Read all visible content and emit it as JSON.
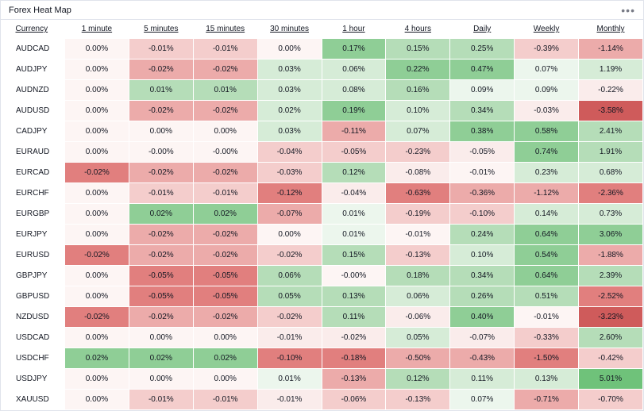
{
  "title": "Forex Heat Map",
  "menu_icon": "•••",
  "columns": [
    "Currency",
    "1 minute",
    "5 minutes",
    "15 minutes",
    "30 minutes",
    "1 hour",
    "4 hours",
    "Daily",
    "Weekly",
    "Monthly"
  ],
  "color_scale": {
    "neg5": "#cf5b5b",
    "neg4": "#e17f7e",
    "neg3": "#ecabaa",
    "neg2": "#f4cdcc",
    "neg1": "#faeceb",
    "neutral": "#fdf5f4",
    "pos1": "#ecf6ed",
    "pos2": "#d6ecd7",
    "pos3": "#b5ddb8",
    "pos4": "#8fce96",
    "pos5": "#6fc27a"
  },
  "text_color": "#131722",
  "border_color": "#e0e3eb",
  "rows": [
    {
      "label": "AUDCAD",
      "cells": [
        {
          "v": "0.00%",
          "c": "neutral"
        },
        {
          "v": "-0.01%",
          "c": "neg2"
        },
        {
          "v": "-0.01%",
          "c": "neg2"
        },
        {
          "v": "0.00%",
          "c": "neutral"
        },
        {
          "v": "0.17%",
          "c": "pos4"
        },
        {
          "v": "0.15%",
          "c": "pos3"
        },
        {
          "v": "0.25%",
          "c": "pos3"
        },
        {
          "v": "-0.39%",
          "c": "neg2"
        },
        {
          "v": "-1.14%",
          "c": "neg3"
        }
      ]
    },
    {
      "label": "AUDJPY",
      "cells": [
        {
          "v": "0.00%",
          "c": "neutral"
        },
        {
          "v": "-0.02%",
          "c": "neg3"
        },
        {
          "v": "-0.02%",
          "c": "neg3"
        },
        {
          "v": "0.03%",
          "c": "pos2"
        },
        {
          "v": "0.06%",
          "c": "pos2"
        },
        {
          "v": "0.22%",
          "c": "pos4"
        },
        {
          "v": "0.47%",
          "c": "pos4"
        },
        {
          "v": "0.07%",
          "c": "pos1"
        },
        {
          "v": "1.19%",
          "c": "pos2"
        }
      ]
    },
    {
      "label": "AUDNZD",
      "cells": [
        {
          "v": "0.00%",
          "c": "neutral"
        },
        {
          "v": "0.01%",
          "c": "pos3"
        },
        {
          "v": "0.01%",
          "c": "pos3"
        },
        {
          "v": "0.03%",
          "c": "pos2"
        },
        {
          "v": "0.08%",
          "c": "pos2"
        },
        {
          "v": "0.16%",
          "c": "pos3"
        },
        {
          "v": "0.09%",
          "c": "pos1"
        },
        {
          "v": "0.09%",
          "c": "pos1"
        },
        {
          "v": "-0.22%",
          "c": "neg1"
        }
      ]
    },
    {
      "label": "AUDUSD",
      "cells": [
        {
          "v": "0.00%",
          "c": "neutral"
        },
        {
          "v": "-0.02%",
          "c": "neg3"
        },
        {
          "v": "-0.02%",
          "c": "neg3"
        },
        {
          "v": "0.02%",
          "c": "pos2"
        },
        {
          "v": "0.19%",
          "c": "pos4"
        },
        {
          "v": "0.10%",
          "c": "pos2"
        },
        {
          "v": "0.34%",
          "c": "pos3"
        },
        {
          "v": "-0.03%",
          "c": "neg1"
        },
        {
          "v": "-3.58%",
          "c": "neg5"
        }
      ]
    },
    {
      "label": "CADJPY",
      "cells": [
        {
          "v": "0.00%",
          "c": "neutral"
        },
        {
          "v": "0.00%",
          "c": "neutral"
        },
        {
          "v": "0.00%",
          "c": "neutral"
        },
        {
          "v": "0.03%",
          "c": "pos2"
        },
        {
          "v": "-0.11%",
          "c": "neg3"
        },
        {
          "v": "0.07%",
          "c": "pos2"
        },
        {
          "v": "0.38%",
          "c": "pos4"
        },
        {
          "v": "0.58%",
          "c": "pos4"
        },
        {
          "v": "2.41%",
          "c": "pos3"
        }
      ]
    },
    {
      "label": "EURAUD",
      "cells": [
        {
          "v": "0.00%",
          "c": "neutral"
        },
        {
          "v": "-0.00%",
          "c": "neutral"
        },
        {
          "v": "-0.00%",
          "c": "neutral"
        },
        {
          "v": "-0.04%",
          "c": "neg2"
        },
        {
          "v": "-0.05%",
          "c": "neg2"
        },
        {
          "v": "-0.23%",
          "c": "neg2"
        },
        {
          "v": "-0.05%",
          "c": "neg1"
        },
        {
          "v": "0.74%",
          "c": "pos4"
        },
        {
          "v": "1.91%",
          "c": "pos3"
        }
      ]
    },
    {
      "label": "EURCAD",
      "cells": [
        {
          "v": "-0.02%",
          "c": "neg4"
        },
        {
          "v": "-0.02%",
          "c": "neg3"
        },
        {
          "v": "-0.02%",
          "c": "neg3"
        },
        {
          "v": "-0.03%",
          "c": "neg2"
        },
        {
          "v": "0.12%",
          "c": "pos3"
        },
        {
          "v": "-0.08%",
          "c": "neg1"
        },
        {
          "v": "-0.01%",
          "c": "neutral"
        },
        {
          "v": "0.23%",
          "c": "pos2"
        },
        {
          "v": "0.68%",
          "c": "pos2"
        }
      ]
    },
    {
      "label": "EURCHF",
      "cells": [
        {
          "v": "0.00%",
          "c": "neutral"
        },
        {
          "v": "-0.01%",
          "c": "neg2"
        },
        {
          "v": "-0.01%",
          "c": "neg2"
        },
        {
          "v": "-0.12%",
          "c": "neg4"
        },
        {
          "v": "-0.04%",
          "c": "neg1"
        },
        {
          "v": "-0.63%",
          "c": "neg4"
        },
        {
          "v": "-0.36%",
          "c": "neg3"
        },
        {
          "v": "-1.12%",
          "c": "neg3"
        },
        {
          "v": "-2.36%",
          "c": "neg4"
        }
      ]
    },
    {
      "label": "EURGBP",
      "cells": [
        {
          "v": "0.00%",
          "c": "neutral"
        },
        {
          "v": "0.02%",
          "c": "pos4"
        },
        {
          "v": "0.02%",
          "c": "pos4"
        },
        {
          "v": "-0.07%",
          "c": "neg3"
        },
        {
          "v": "0.01%",
          "c": "pos1"
        },
        {
          "v": "-0.19%",
          "c": "neg2"
        },
        {
          "v": "-0.10%",
          "c": "neg2"
        },
        {
          "v": "0.14%",
          "c": "pos2"
        },
        {
          "v": "0.73%",
          "c": "pos2"
        }
      ]
    },
    {
      "label": "EURJPY",
      "cells": [
        {
          "v": "0.00%",
          "c": "neutral"
        },
        {
          "v": "-0.02%",
          "c": "neg3"
        },
        {
          "v": "-0.02%",
          "c": "neg3"
        },
        {
          "v": "0.00%",
          "c": "neutral"
        },
        {
          "v": "0.01%",
          "c": "pos1"
        },
        {
          "v": "-0.01%",
          "c": "neutral"
        },
        {
          "v": "0.24%",
          "c": "pos3"
        },
        {
          "v": "0.64%",
          "c": "pos4"
        },
        {
          "v": "3.06%",
          "c": "pos4"
        }
      ]
    },
    {
      "label": "EURUSD",
      "cells": [
        {
          "v": "-0.02%",
          "c": "neg4"
        },
        {
          "v": "-0.02%",
          "c": "neg3"
        },
        {
          "v": "-0.02%",
          "c": "neg3"
        },
        {
          "v": "-0.02%",
          "c": "neg2"
        },
        {
          "v": "0.15%",
          "c": "pos3"
        },
        {
          "v": "-0.13%",
          "c": "neg2"
        },
        {
          "v": "0.10%",
          "c": "pos2"
        },
        {
          "v": "0.54%",
          "c": "pos4"
        },
        {
          "v": "-1.88%",
          "c": "neg3"
        }
      ]
    },
    {
      "label": "GBPJPY",
      "cells": [
        {
          "v": "0.00%",
          "c": "neutral"
        },
        {
          "v": "-0.05%",
          "c": "neg4"
        },
        {
          "v": "-0.05%",
          "c": "neg4"
        },
        {
          "v": "0.06%",
          "c": "pos3"
        },
        {
          "v": "-0.00%",
          "c": "neutral"
        },
        {
          "v": "0.18%",
          "c": "pos3"
        },
        {
          "v": "0.34%",
          "c": "pos3"
        },
        {
          "v": "0.64%",
          "c": "pos4"
        },
        {
          "v": "2.39%",
          "c": "pos3"
        }
      ]
    },
    {
      "label": "GBPUSD",
      "cells": [
        {
          "v": "0.00%",
          "c": "neutral"
        },
        {
          "v": "-0.05%",
          "c": "neg4"
        },
        {
          "v": "-0.05%",
          "c": "neg4"
        },
        {
          "v": "0.05%",
          "c": "pos3"
        },
        {
          "v": "0.13%",
          "c": "pos3"
        },
        {
          "v": "0.06%",
          "c": "pos2"
        },
        {
          "v": "0.26%",
          "c": "pos3"
        },
        {
          "v": "0.51%",
          "c": "pos3"
        },
        {
          "v": "-2.52%",
          "c": "neg4"
        }
      ]
    },
    {
      "label": "NZDUSD",
      "cells": [
        {
          "v": "-0.02%",
          "c": "neg4"
        },
        {
          "v": "-0.02%",
          "c": "neg3"
        },
        {
          "v": "-0.02%",
          "c": "neg3"
        },
        {
          "v": "-0.02%",
          "c": "neg2"
        },
        {
          "v": "0.11%",
          "c": "pos3"
        },
        {
          "v": "-0.06%",
          "c": "neg1"
        },
        {
          "v": "0.40%",
          "c": "pos4"
        },
        {
          "v": "-0.01%",
          "c": "neutral"
        },
        {
          "v": "-3.23%",
          "c": "neg5"
        }
      ]
    },
    {
      "label": "USDCAD",
      "cells": [
        {
          "v": "0.00%",
          "c": "neutral"
        },
        {
          "v": "0.00%",
          "c": "neutral"
        },
        {
          "v": "0.00%",
          "c": "neutral"
        },
        {
          "v": "-0.01%",
          "c": "neg1"
        },
        {
          "v": "-0.02%",
          "c": "neg1"
        },
        {
          "v": "0.05%",
          "c": "pos2"
        },
        {
          "v": "-0.07%",
          "c": "neg1"
        },
        {
          "v": "-0.33%",
          "c": "neg2"
        },
        {
          "v": "2.60%",
          "c": "pos3"
        }
      ]
    },
    {
      "label": "USDCHF",
      "cells": [
        {
          "v": "0.02%",
          "c": "pos4"
        },
        {
          "v": "0.02%",
          "c": "pos4"
        },
        {
          "v": "0.02%",
          "c": "pos4"
        },
        {
          "v": "-0.10%",
          "c": "neg4"
        },
        {
          "v": "-0.18%",
          "c": "neg4"
        },
        {
          "v": "-0.50%",
          "c": "neg3"
        },
        {
          "v": "-0.43%",
          "c": "neg3"
        },
        {
          "v": "-1.50%",
          "c": "neg4"
        },
        {
          "v": "-0.42%",
          "c": "neg2"
        }
      ]
    },
    {
      "label": "USDJPY",
      "cells": [
        {
          "v": "0.00%",
          "c": "neutral"
        },
        {
          "v": "0.00%",
          "c": "neutral"
        },
        {
          "v": "0.00%",
          "c": "neutral"
        },
        {
          "v": "0.01%",
          "c": "pos1"
        },
        {
          "v": "-0.13%",
          "c": "neg3"
        },
        {
          "v": "0.12%",
          "c": "pos3"
        },
        {
          "v": "0.11%",
          "c": "pos2"
        },
        {
          "v": "0.13%",
          "c": "pos2"
        },
        {
          "v": "5.01%",
          "c": "pos5"
        }
      ]
    },
    {
      "label": "XAUUSD",
      "cells": [
        {
          "v": "0.00%",
          "c": "neutral"
        },
        {
          "v": "-0.01%",
          "c": "neg2"
        },
        {
          "v": "-0.01%",
          "c": "neg2"
        },
        {
          "v": "-0.01%",
          "c": "neg1"
        },
        {
          "v": "-0.06%",
          "c": "neg2"
        },
        {
          "v": "-0.13%",
          "c": "neg2"
        },
        {
          "v": "0.07%",
          "c": "pos1"
        },
        {
          "v": "-0.71%",
          "c": "neg3"
        },
        {
          "v": "-0.70%",
          "c": "neg2"
        }
      ]
    }
  ]
}
